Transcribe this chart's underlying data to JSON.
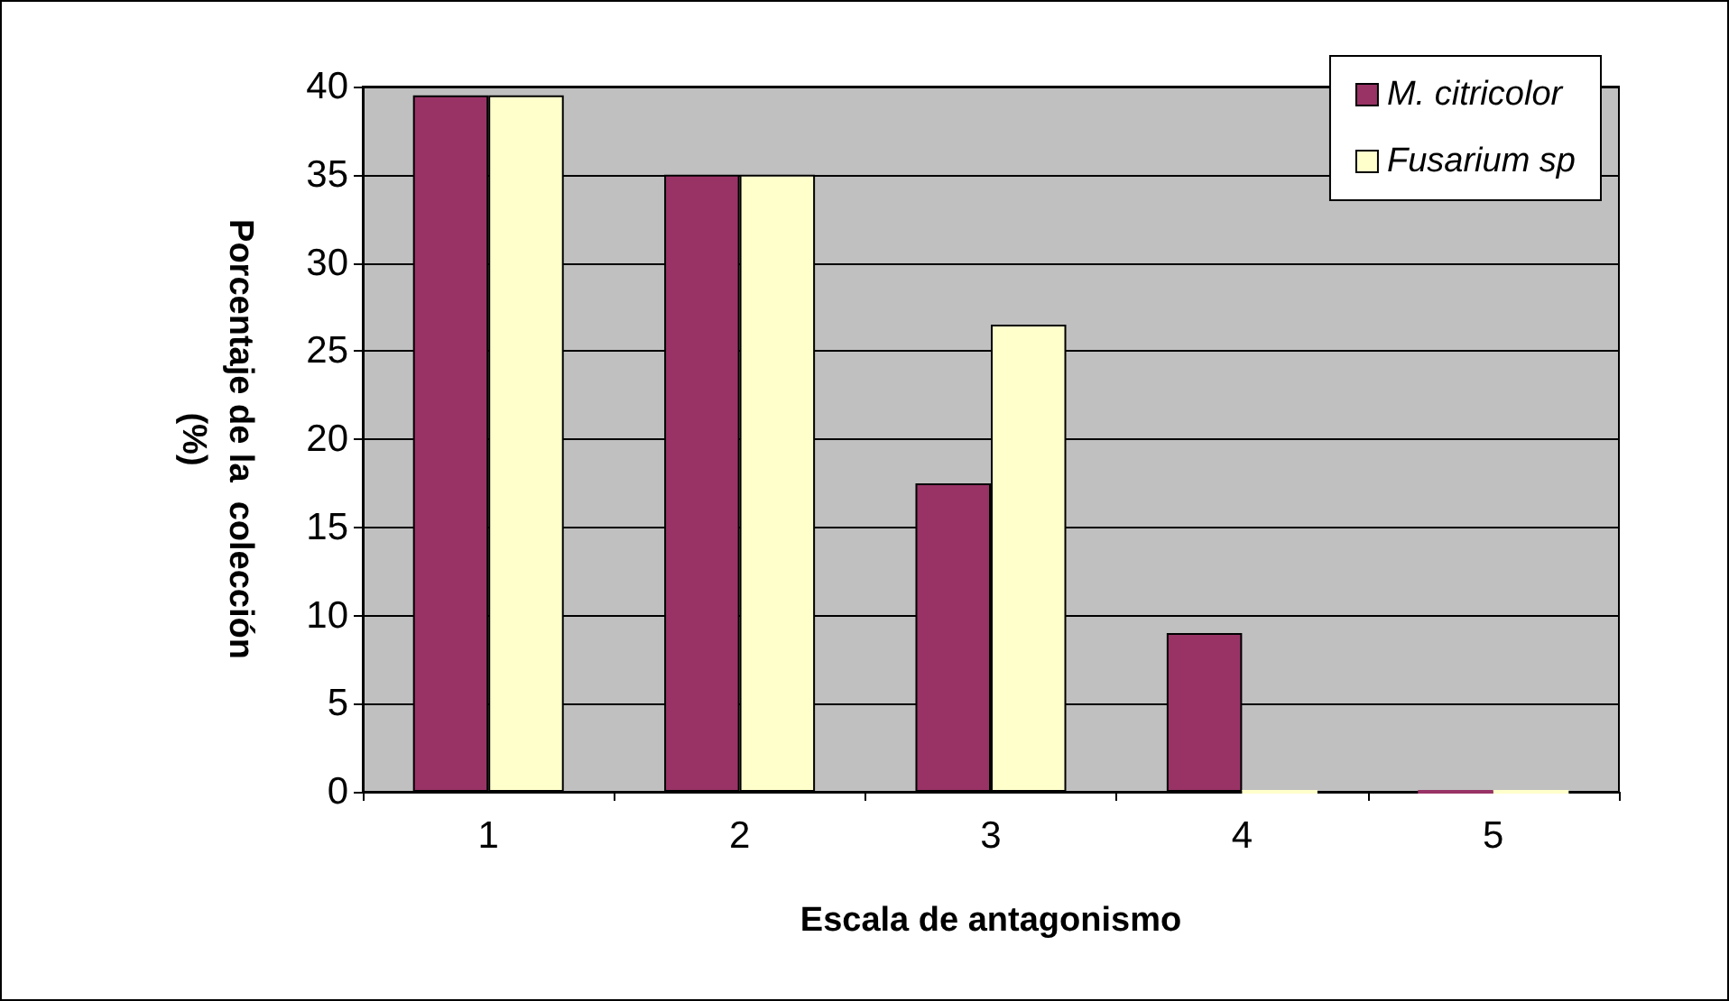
{
  "chart_data": {
    "type": "bar",
    "xlabel": "Escala de antagonismo",
    "ylabel": "Porcentaje de la  colección\n(%)",
    "categories": [
      "1",
      "2",
      "3",
      "4",
      "5"
    ],
    "series": [
      {
        "name": "M. citricolor",
        "color": "#993366",
        "values": [
          39.5,
          35,
          17.5,
          9,
          0
        ]
      },
      {
        "name": "Fusarium sp",
        "color": "#ffffcc",
        "values": [
          39.5,
          35,
          26.5,
          0,
          0
        ]
      }
    ],
    "ylim": [
      0,
      40
    ],
    "yticks": [
      0,
      5,
      10,
      15,
      20,
      25,
      30,
      35,
      40
    ],
    "grid": "y",
    "legend": "top right"
  }
}
